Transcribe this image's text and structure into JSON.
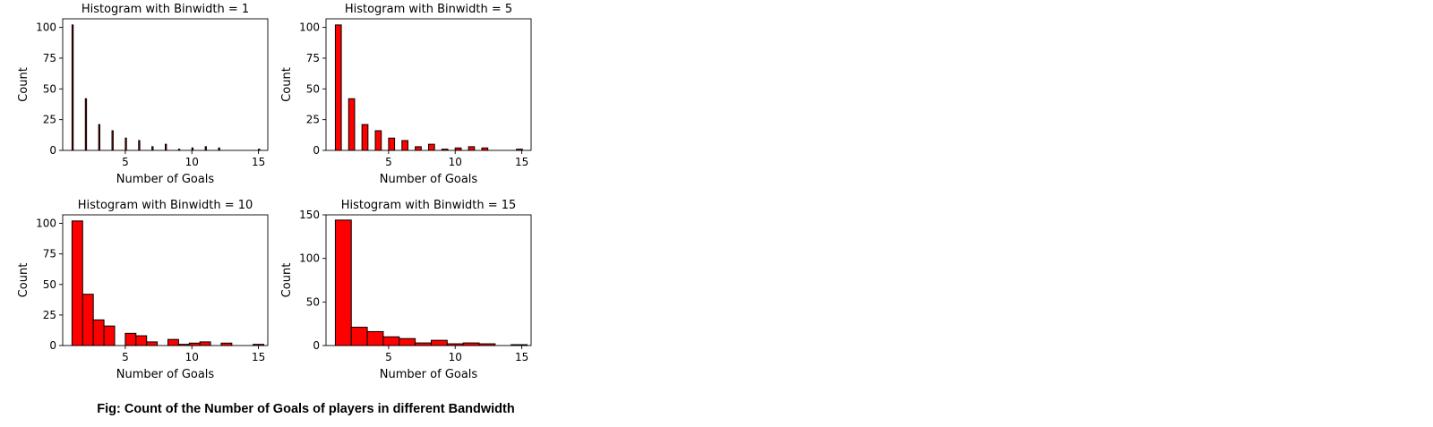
{
  "figure": {
    "caption": "Fig: Count of the Number of Goals of players in different Bandwidth",
    "bar_color": "#ff0000",
    "edge_color": "#000000"
  },
  "chart_data": [
    {
      "type": "bar",
      "title": "Histogram with Binwidth = 1",
      "xlabel": "Number of Goals",
      "ylabel": "Count",
      "xlim": [
        0.3,
        15.7
      ],
      "ylim": [
        0,
        107
      ],
      "xticks": [
        5,
        10,
        15
      ],
      "yticks": [
        0,
        25,
        50,
        75,
        100
      ],
      "bins": [
        {
          "x0": 1,
          "x1": 1.09,
          "count": 102
        },
        {
          "x0": 2,
          "x1": 2.09,
          "count": 42
        },
        {
          "x0": 3,
          "x1": 3.09,
          "count": 21
        },
        {
          "x0": 4,
          "x1": 4.09,
          "count": 16
        },
        {
          "x0": 5,
          "x1": 5.09,
          "count": 10
        },
        {
          "x0": 6,
          "x1": 6.09,
          "count": 8
        },
        {
          "x0": 7,
          "x1": 7.09,
          "count": 3
        },
        {
          "x0": 8,
          "x1": 8.09,
          "count": 5
        },
        {
          "x0": 9,
          "x1": 9.09,
          "count": 1
        },
        {
          "x0": 10,
          "x1": 10.09,
          "count": 2
        },
        {
          "x0": 11,
          "x1": 11.09,
          "count": 3
        },
        {
          "x0": 12,
          "x1": 12.09,
          "count": 2
        },
        {
          "x0": 15,
          "x1": 15.09,
          "count": 1
        }
      ]
    },
    {
      "type": "bar",
      "title": "Histogram with Binwidth = 5",
      "xlabel": "Number of Goals",
      "ylabel": "Count",
      "xlim": [
        0.3,
        15.7
      ],
      "ylim": [
        0,
        107
      ],
      "xticks": [
        5,
        10,
        15
      ],
      "yticks": [
        0,
        25,
        50,
        75,
        100
      ],
      "bins": [
        {
          "x0": 1,
          "x1": 1.45,
          "count": 102
        },
        {
          "x0": 2,
          "x1": 2.45,
          "count": 42
        },
        {
          "x0": 3,
          "x1": 3.45,
          "count": 21
        },
        {
          "x0": 4,
          "x1": 4.45,
          "count": 16
        },
        {
          "x0": 5,
          "x1": 5.45,
          "count": 10
        },
        {
          "x0": 6,
          "x1": 6.45,
          "count": 8
        },
        {
          "x0": 7,
          "x1": 7.45,
          "count": 3
        },
        {
          "x0": 8,
          "x1": 8.45,
          "count": 5
        },
        {
          "x0": 9,
          "x1": 9.45,
          "count": 1
        },
        {
          "x0": 10,
          "x1": 10.45,
          "count": 2
        },
        {
          "x0": 11,
          "x1": 11.45,
          "count": 3
        },
        {
          "x0": 12,
          "x1": 12.45,
          "count": 2
        },
        {
          "x0": 14.6,
          "x1": 15.05,
          "count": 1
        }
      ]
    },
    {
      "type": "bar",
      "title": "Histogram with Binwidth = 10",
      "xlabel": "Number of Goals",
      "ylabel": "Count",
      "xlim": [
        0.3,
        15.7
      ],
      "ylim": [
        0,
        107
      ],
      "xticks": [
        5,
        10,
        15
      ],
      "yticks": [
        0,
        25,
        50,
        75,
        100
      ],
      "bins": [
        {
          "x0": 1,
          "x1": 1.8,
          "count": 102
        },
        {
          "x0": 1.8,
          "x1": 2.6,
          "count": 42
        },
        {
          "x0": 2.6,
          "x1": 3.4,
          "count": 21
        },
        {
          "x0": 3.4,
          "x1": 4.2,
          "count": 16
        },
        {
          "x0": 4.2,
          "x1": 5.0,
          "count": 0
        },
        {
          "x0": 5.0,
          "x1": 5.8,
          "count": 10
        },
        {
          "x0": 5.8,
          "x1": 6.6,
          "count": 8
        },
        {
          "x0": 6.6,
          "x1": 7.4,
          "count": 3
        },
        {
          "x0": 7.4,
          "x1": 8.2,
          "count": 0
        },
        {
          "x0": 8.2,
          "x1": 9.0,
          "count": 5
        },
        {
          "x0": 9.0,
          "x1": 9.8,
          "count": 1
        },
        {
          "x0": 9.8,
          "x1": 10.6,
          "count": 2
        },
        {
          "x0": 10.6,
          "x1": 11.4,
          "count": 3
        },
        {
          "x0": 11.4,
          "x1": 12.2,
          "count": 0
        },
        {
          "x0": 12.2,
          "x1": 13.0,
          "count": 2
        },
        {
          "x0": 13.0,
          "x1": 13.8,
          "count": 0
        },
        {
          "x0": 13.8,
          "x1": 14.6,
          "count": 0
        },
        {
          "x0": 14.6,
          "x1": 15.4,
          "count": 1
        }
      ]
    },
    {
      "type": "bar",
      "title": "Histogram with Binwidth = 15",
      "xlabel": "Number of Goals",
      "ylabel": "Count",
      "xlim": [
        0.3,
        15.7
      ],
      "ylim": [
        0,
        150
      ],
      "xticks": [
        5,
        10,
        15
      ],
      "yticks": [
        0,
        50,
        100,
        150
      ],
      "bins": [
        {
          "x0": 1.0,
          "x1": 2.2,
          "count": 144
        },
        {
          "x0": 2.2,
          "x1": 3.4,
          "count": 21
        },
        {
          "x0": 3.4,
          "x1": 4.6,
          "count": 16
        },
        {
          "x0": 4.6,
          "x1": 5.8,
          "count": 10
        },
        {
          "x0": 5.8,
          "x1": 7.0,
          "count": 8
        },
        {
          "x0": 7.0,
          "x1": 8.2,
          "count": 3
        },
        {
          "x0": 8.2,
          "x1": 9.4,
          "count": 6
        },
        {
          "x0": 9.4,
          "x1": 10.6,
          "count": 2
        },
        {
          "x0": 10.6,
          "x1": 11.8,
          "count": 3
        },
        {
          "x0": 11.8,
          "x1": 13.0,
          "count": 2
        },
        {
          "x0": 13.0,
          "x1": 14.2,
          "count": 0
        },
        {
          "x0": 14.2,
          "x1": 15.4,
          "count": 1
        }
      ]
    }
  ]
}
